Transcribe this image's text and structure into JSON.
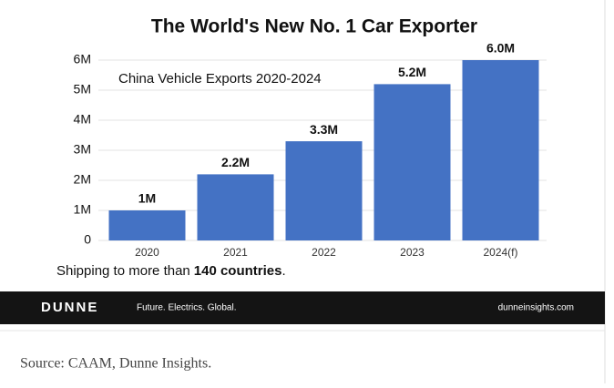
{
  "chart_data": {
    "type": "bar",
    "title": "The World's New No. 1 Car Exporter",
    "annotation": "China Vehicle Exports 2020-2024",
    "categories": [
      "2020",
      "2021",
      "2022",
      "2023",
      "2024(f)"
    ],
    "values": [
      1,
      2.2,
      3.3,
      5.2,
      6.0
    ],
    "value_labels": [
      "1M",
      "2.2M",
      "3.3M",
      "5.2M",
      "6.0M"
    ],
    "color": "#4472c4",
    "ylim": [
      0,
      6
    ],
    "yticks": [
      0,
      {
        "value": 1,
        "label": "1M"
      },
      {
        "value": 2,
        "label": "2M"
      },
      {
        "value": 3,
        "label": "3M"
      },
      {
        "value": 4,
        "label": "4M"
      },
      {
        "value": 5,
        "label": "5M"
      },
      {
        "value": 6,
        "label": "6M"
      }
    ],
    "grid": true,
    "note": [
      "Shipping to more than",
      "140 countries",
      "."
    ]
  },
  "footer": {
    "logo": "DUNNE",
    "tagline": "Future. Electrics. Global.",
    "url": "dunneinsights.com"
  },
  "caption": "Source: CAAM, Dunne Insights."
}
